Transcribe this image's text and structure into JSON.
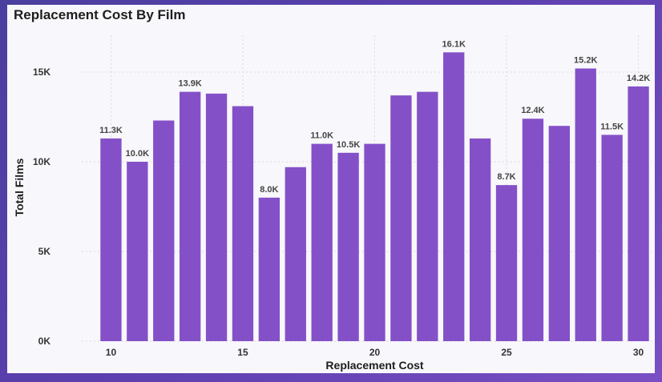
{
  "title": "Replacement Cost By Film",
  "chart_data": {
    "type": "bar",
    "title": "Replacement Cost By Film",
    "xlabel": "Replacement Cost",
    "ylabel": "Total Films",
    "x": [
      10,
      11,
      12,
      13,
      14,
      15,
      16,
      17,
      18,
      19,
      20,
      21,
      22,
      23,
      24,
      25,
      26,
      27,
      28,
      29,
      30
    ],
    "values": [
      11300,
      10000,
      12300,
      13900,
      13800,
      13100,
      8000,
      9700,
      11000,
      10500,
      11000,
      13700,
      13900,
      16100,
      11300,
      8700,
      12400,
      12000,
      15200,
      11500,
      14200
    ],
    "data_labels": [
      "11.3K",
      "10.0K",
      "",
      "13.9K",
      "",
      "",
      "8.0K",
      "",
      "11.0K",
      "10.5K",
      "",
      "",
      "",
      "16.1K",
      "",
      "8.7K",
      "12.4K",
      "",
      "15.2K",
      "11.5K",
      "14.2K"
    ],
    "y_ticks": [
      0,
      5000,
      10000,
      15000
    ],
    "y_tick_labels": [
      "0K",
      "5K",
      "10K",
      "15K"
    ],
    "x_ticks": [
      10,
      15,
      20,
      25,
      30
    ],
    "x_tick_labels": [
      "10",
      "15",
      "20",
      "25",
      "30"
    ],
    "ylim": [
      0,
      17500
    ],
    "xlim": [
      9.5,
      30.5
    ],
    "grid": true,
    "bar_color": "#8450c8"
  }
}
